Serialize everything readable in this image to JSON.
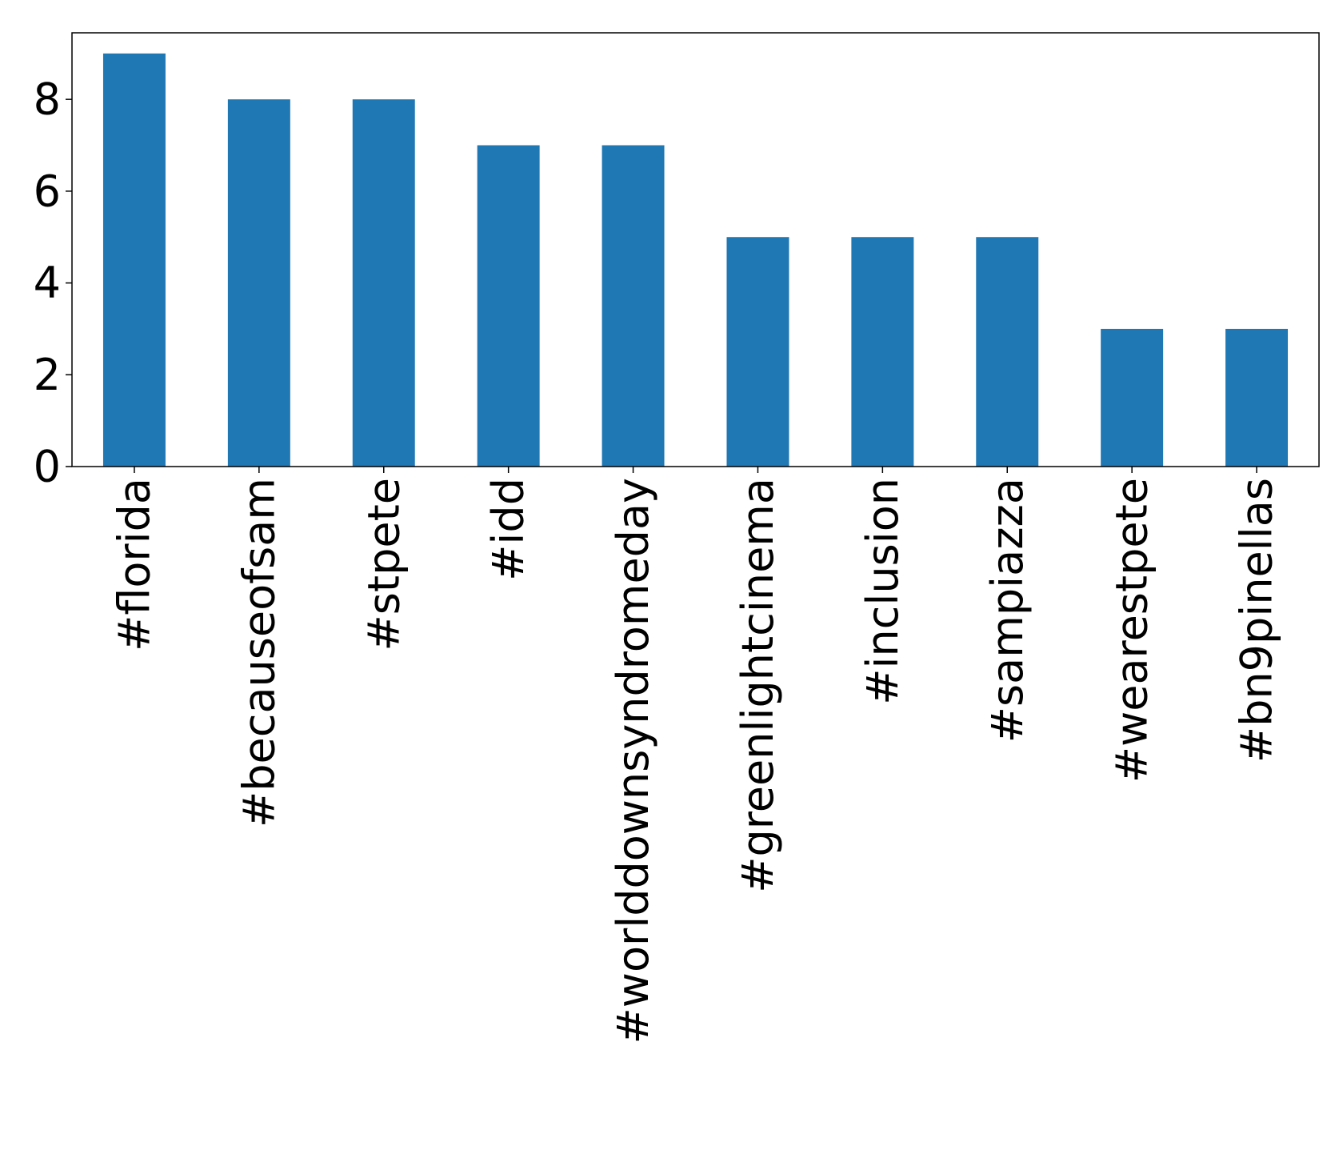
{
  "chart_data": {
    "type": "bar",
    "title": "",
    "xlabel": "",
    "ylabel": "",
    "categories": [
      "#florida",
      "#becauseofsam",
      "#stpete",
      "#idd",
      "#worlddownsyndromeday",
      "#greenlightcinema",
      "#inclusion",
      "#sampiazza",
      "#wearestpete",
      "#bn9pinellas"
    ],
    "values": [
      9,
      8,
      8,
      7,
      7,
      5,
      5,
      5,
      3,
      3
    ],
    "ylim": [
      0,
      9.45
    ],
    "yticks": [
      0,
      2,
      4,
      6,
      8
    ],
    "ytick_labels": [
      "0",
      "2",
      "4",
      "6",
      "8"
    ],
    "bar_color": "#1f77b4",
    "grid": false,
    "legend": "none",
    "xtick_rotation": "vertical"
  }
}
